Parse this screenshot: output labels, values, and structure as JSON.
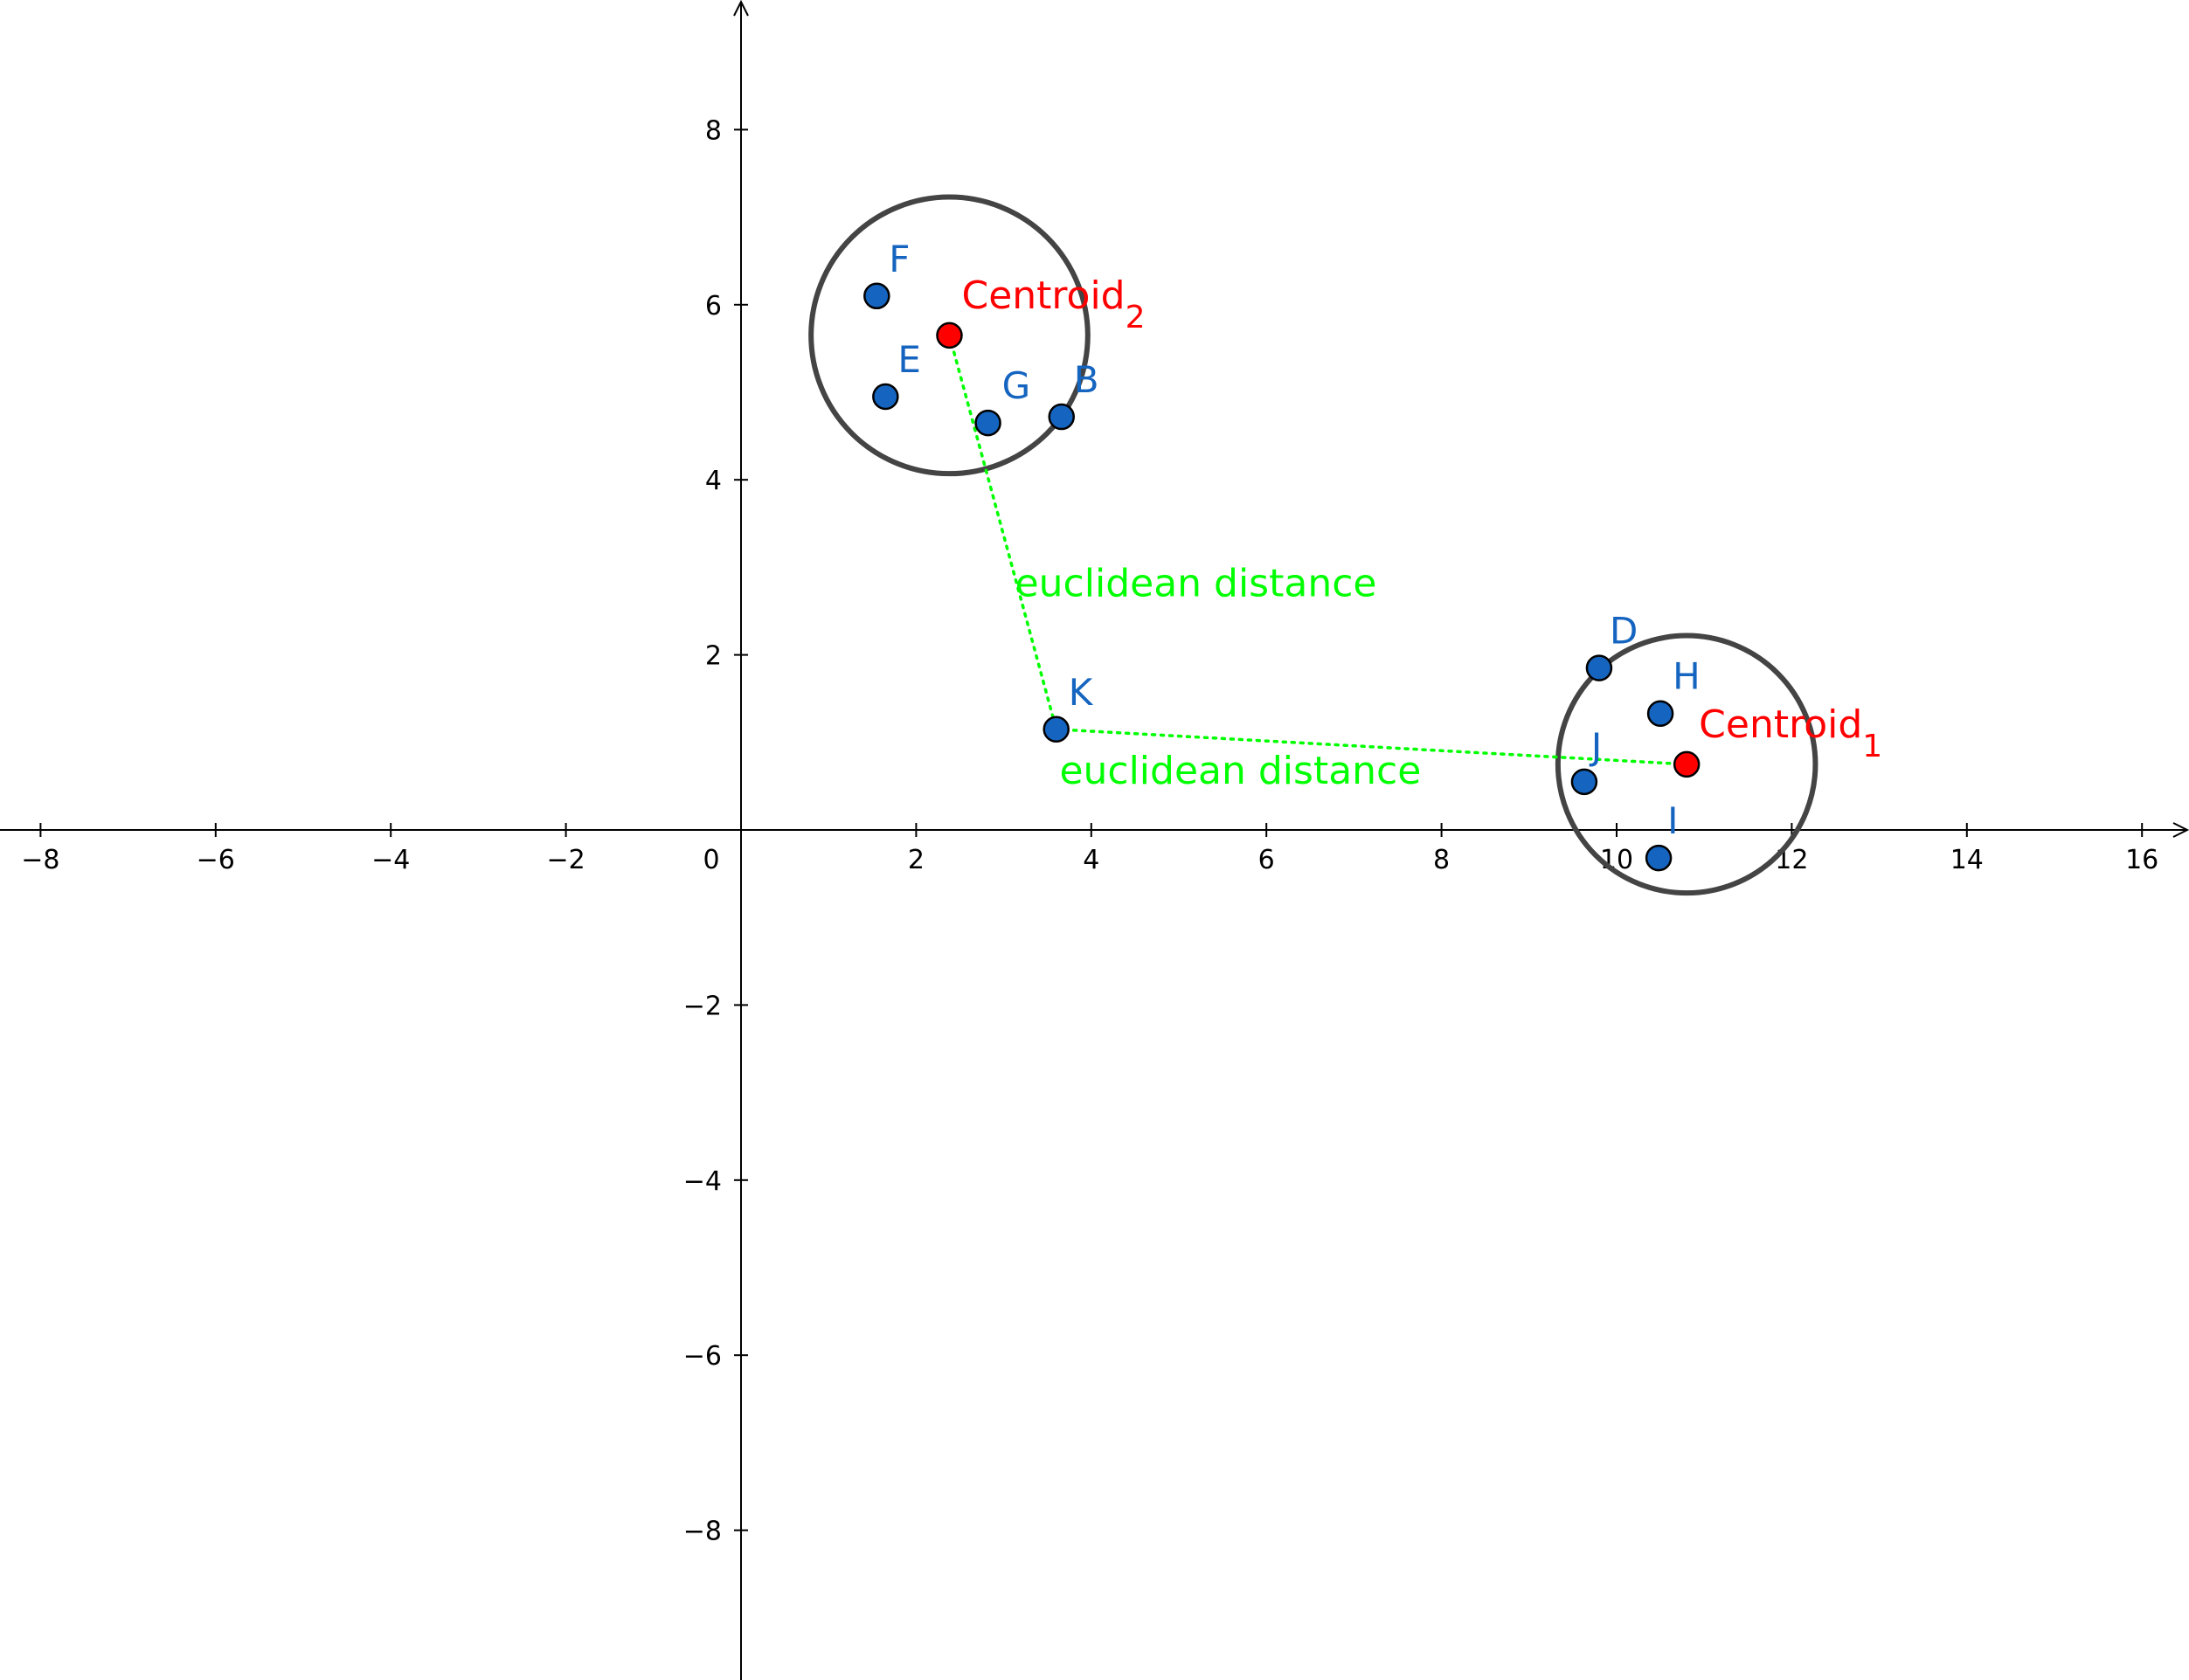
{
  "chart_data": {
    "type": "scatter",
    "title": "",
    "xlabel": "",
    "ylabel": "",
    "xlim": [
      -8.4,
      16.6
    ],
    "ylim": [
      -9.7,
      9.4
    ],
    "x_ticks": [
      -8,
      -6,
      -4,
      -2,
      0,
      2,
      4,
      6,
      8,
      10,
      12,
      14,
      16
    ],
    "y_ticks": [
      -8,
      -6,
      -4,
      -2,
      2,
      4,
      6,
      8
    ],
    "x_tick_labels": [
      "−8",
      "−6",
      "−4",
      "−2",
      "0",
      "2",
      "4",
      "6",
      "8",
      "10",
      "12",
      "14",
      "16"
    ],
    "y_tick_labels": [
      "−8",
      "−6",
      "−4",
      "−2",
      "2",
      "4",
      "6",
      "8"
    ],
    "grid": false,
    "points": [
      {
        "label": "F",
        "x": 1.55,
        "y": 6.1
      },
      {
        "label": "E",
        "x": 1.65,
        "y": 4.95
      },
      {
        "label": "G",
        "x": 2.82,
        "y": 4.65
      },
      {
        "label": "B",
        "x": 3.66,
        "y": 4.72
      },
      {
        "label": "K",
        "x": 3.6,
        "y": 1.15
      },
      {
        "label": "D",
        "x": 9.8,
        "y": 1.85
      },
      {
        "label": "H",
        "x": 10.5,
        "y": 1.33
      },
      {
        "label": "J",
        "x": 9.63,
        "y": 0.55
      },
      {
        "label": "I",
        "x": 10.48,
        "y": -0.32
      }
    ],
    "centroids": [
      {
        "label": "Centroid",
        "subscript": "2",
        "x": 2.38,
        "y": 5.65
      },
      {
        "label": "Centroid",
        "subscript": "1",
        "x": 10.8,
        "y": 0.75
      }
    ],
    "circles": [
      {
        "cx": 2.38,
        "cy": 5.65,
        "r": 1.58
      },
      {
        "cx": 10.8,
        "cy": 0.75,
        "r": 1.47
      }
    ],
    "distance_lines": [
      {
        "from": [
          2.38,
          5.65
        ],
        "to": [
          3.6,
          1.15
        ],
        "label": "euclidean distance"
      },
      {
        "from": [
          3.6,
          1.15
        ],
        "to": [
          10.8,
          0.75
        ],
        "label": "euclidean distance"
      }
    ],
    "colors": {
      "point": "#1565c0",
      "point_label": "#1565c0",
      "centroid": "#ff0000",
      "centroid_label": "#ff0000",
      "distance": "#00ff00",
      "circle": "#444444",
      "axis": "#000000"
    }
  }
}
